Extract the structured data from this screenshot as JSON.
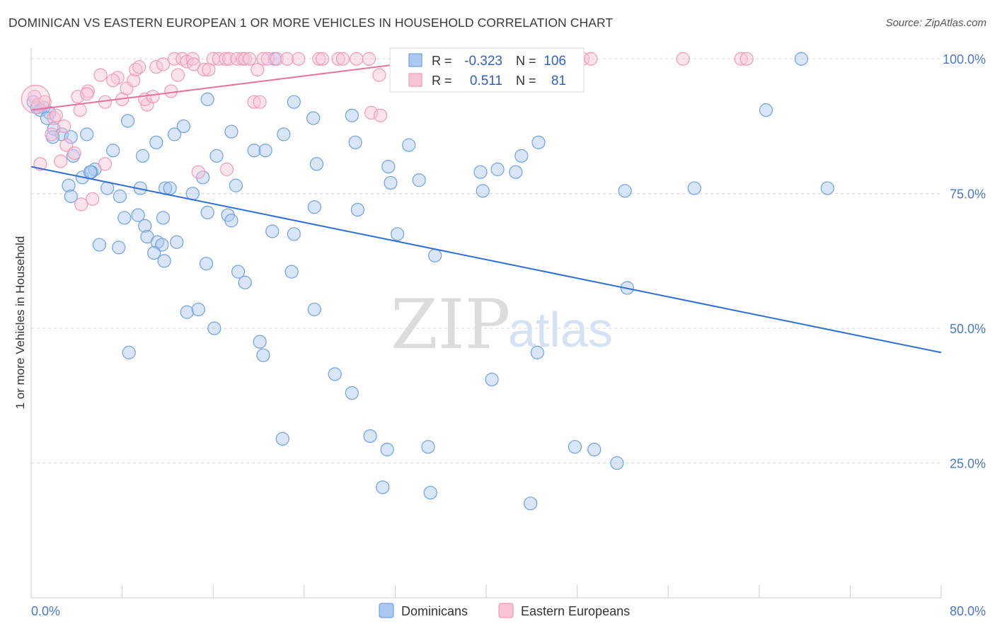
{
  "title": "DOMINICAN VS EASTERN EUROPEAN 1 OR MORE VEHICLES IN HOUSEHOLD CORRELATION CHART",
  "source": "Source: ZipAtlas.com",
  "watermark": {
    "zip": "ZIP",
    "atlas": "atlas"
  },
  "colors": {
    "blue": "#6fa0e0",
    "blue_fill": "#aac8f0",
    "blue_line": "#2e6fd0",
    "pink": "#f09ab8",
    "pink_fill": "#f8c4d6",
    "pink_line": "#e8709a",
    "grid": "#d8d8d8",
    "tick_text": "#4a78c8"
  },
  "stats": {
    "rows": [
      {
        "r_label": "R =",
        "r_value": "-0.323",
        "n_label": "N =",
        "n_value": "106"
      },
      {
        "r_label": "R =",
        "r_value": "0.511",
        "n_label": "N =",
        "n_value": "81"
      }
    ]
  },
  "legend": {
    "items": [
      "Dominicans",
      "Eastern Europeans"
    ]
  },
  "chart_data": {
    "type": "scatter",
    "title": "DOMINICAN VS EASTERN EUROPEAN 1 OR MORE VEHICLES IN HOUSEHOLD CORRELATION CHART",
    "xlabel": "",
    "ylabel": "1 or more Vehicles in Household",
    "xlim": [
      0,
      80
    ],
    "ylim": [
      0,
      102
    ],
    "x_tick_labels": [
      "0.0%",
      "80.0%"
    ],
    "y_ticks": [
      25,
      50,
      75,
      100
    ],
    "y_tick_labels": [
      "25.0%",
      "50.0%",
      "75.0%",
      "100.0%"
    ],
    "grid": true,
    "legend_position": "bottom",
    "series": [
      {
        "name": "Dominicans",
        "r": -0.323,
        "n": 106,
        "trend": {
          "x": [
            0,
            80
          ],
          "y": [
            80.0,
            45.5
          ]
        },
        "points": [
          [
            0.2,
            92
          ],
          [
            0.5,
            91
          ],
          [
            1.1,
            91
          ],
          [
            0.8,
            90.5
          ],
          [
            1.6,
            90
          ],
          [
            1.4,
            89
          ],
          [
            2.0,
            87
          ],
          [
            2.7,
            86
          ],
          [
            4.9,
            86
          ],
          [
            1.9,
            85.5
          ],
          [
            3.5,
            85.5
          ],
          [
            3.7,
            82
          ],
          [
            3.3,
            76.5
          ],
          [
            4.5,
            78
          ],
          [
            5.6,
            79.5
          ],
          [
            5.3,
            79
          ],
          [
            7.2,
            83
          ],
          [
            8.5,
            88.5
          ],
          [
            9.8,
            82
          ],
          [
            11.0,
            84.5
          ],
          [
            12.6,
            86
          ],
          [
            13.4,
            87.5
          ],
          [
            15.5,
            92.5
          ],
          [
            16.3,
            82
          ],
          [
            18.0,
            76.5
          ],
          [
            17.6,
            86.5
          ],
          [
            19.6,
            83
          ],
          [
            20.6,
            83
          ],
          [
            22.2,
            86
          ],
          [
            24.8,
            89
          ],
          [
            25.1,
            80.5
          ],
          [
            28.2,
            89.5
          ],
          [
            28.5,
            84.5
          ],
          [
            31.4,
            80
          ],
          [
            31.6,
            77
          ],
          [
            33.2,
            84
          ],
          [
            34.1,
            77.5
          ],
          [
            39.5,
            79
          ],
          [
            41.0,
            79.5
          ],
          [
            39.7,
            75.5
          ],
          [
            42.6,
            79
          ],
          [
            43.1,
            82
          ],
          [
            44.6,
            84.5
          ],
          [
            52.2,
            75.5
          ],
          [
            58.3,
            76
          ],
          [
            64.6,
            90.5
          ],
          [
            70.0,
            76
          ],
          [
            3.5,
            74.5
          ],
          [
            6.7,
            76
          ],
          [
            7.8,
            74.5
          ],
          [
            9.6,
            76
          ],
          [
            11.8,
            76
          ],
          [
            12.2,
            76
          ],
          [
            14.2,
            75
          ],
          [
            15.1,
            78
          ],
          [
            9.4,
            71
          ],
          [
            11.6,
            70.5
          ],
          [
            10.0,
            69
          ],
          [
            8.2,
            70.5
          ],
          [
            12.8,
            66
          ],
          [
            10.2,
            67
          ],
          [
            11.1,
            66
          ],
          [
            11.5,
            65.5
          ],
          [
            10.8,
            64
          ],
          [
            6.0,
            65.5
          ],
          [
            7.7,
            65
          ],
          [
            15.5,
            71.5
          ],
          [
            17.3,
            71
          ],
          [
            17.6,
            70
          ],
          [
            21.2,
            68
          ],
          [
            23.1,
            67.5
          ],
          [
            24.9,
            72.5
          ],
          [
            28.7,
            72
          ],
          [
            32.2,
            67.5
          ],
          [
            35.5,
            63.5
          ],
          [
            15.4,
            62
          ],
          [
            18.2,
            60.5
          ],
          [
            18.8,
            58.5
          ],
          [
            22.9,
            60.5
          ],
          [
            11.7,
            62.5
          ],
          [
            13.7,
            53
          ],
          [
            14.7,
            53.5
          ],
          [
            16.1,
            50
          ],
          [
            20.1,
            47.5
          ],
          [
            20.4,
            45
          ],
          [
            24.9,
            53.5
          ],
          [
            52.4,
            57.5
          ],
          [
            8.6,
            45.5
          ],
          [
            44.5,
            45.5
          ],
          [
            26.7,
            41.5
          ],
          [
            28.2,
            38
          ],
          [
            40.5,
            40.5
          ],
          [
            22.1,
            29.5
          ],
          [
            29.8,
            30
          ],
          [
            31.3,
            27.5
          ],
          [
            34.9,
            28
          ],
          [
            47.8,
            28
          ],
          [
            49.5,
            27.5
          ],
          [
            51.5,
            25
          ],
          [
            30.9,
            20.5
          ],
          [
            35.1,
            19.5
          ],
          [
            43.9,
            17.5
          ],
          [
            23.1,
            92
          ],
          [
            21.4,
            100
          ],
          [
            32.4,
            100
          ],
          [
            67.7,
            100
          ],
          [
            5.2,
            79
          ]
        ]
      },
      {
        "name": "Eastern Europeans",
        "r": 0.511,
        "n": 81,
        "trend": {
          "x": [
            0,
            36.0
          ],
          "y": [
            90.5,
            100.0
          ]
        },
        "points": [
          [
            0.3,
            93
          ],
          [
            0.6,
            91.5
          ],
          [
            1.2,
            92
          ],
          [
            2.0,
            89
          ],
          [
            2.9,
            87.5
          ],
          [
            1.8,
            86
          ],
          [
            3.1,
            84
          ],
          [
            3.8,
            82.5
          ],
          [
            2.6,
            81
          ],
          [
            0.8,
            80.5
          ],
          [
            4.3,
            90.5
          ],
          [
            4.1,
            93
          ],
          [
            5.0,
            94
          ],
          [
            4.9,
            93.5
          ],
          [
            6.1,
            97
          ],
          [
            6.5,
            92
          ],
          [
            7.6,
            96.5
          ],
          [
            7.2,
            96
          ],
          [
            8.4,
            94.5
          ],
          [
            8.0,
            92.5
          ],
          [
            9.0,
            96
          ],
          [
            9.2,
            98
          ],
          [
            9.5,
            98.5
          ],
          [
            10.2,
            91.5
          ],
          [
            10.0,
            92.5
          ],
          [
            10.7,
            93
          ],
          [
            11.0,
            98.5
          ],
          [
            11.6,
            99
          ],
          [
            12.3,
            94
          ],
          [
            12.6,
            100
          ],
          [
            12.9,
            97
          ],
          [
            13.3,
            100
          ],
          [
            13.7,
            99.5
          ],
          [
            14.2,
            100
          ],
          [
            14.3,
            99
          ],
          [
            15.2,
            98
          ],
          [
            15.6,
            98
          ],
          [
            16.0,
            100
          ],
          [
            16.5,
            100
          ],
          [
            17.1,
            100
          ],
          [
            17.4,
            100
          ],
          [
            18.1,
            100
          ],
          [
            18.6,
            100
          ],
          [
            18.8,
            100
          ],
          [
            19.2,
            100
          ],
          [
            19.9,
            98
          ],
          [
            20.4,
            100
          ],
          [
            20.8,
            100
          ],
          [
            21.6,
            100
          ],
          [
            22.5,
            100
          ],
          [
            23.5,
            100
          ],
          [
            25.3,
            100
          ],
          [
            25.6,
            100
          ],
          [
            27.0,
            100
          ],
          [
            27.4,
            100
          ],
          [
            28.6,
            100
          ],
          [
            29.7,
            100
          ],
          [
            30.6,
            97
          ],
          [
            29.9,
            90
          ],
          [
            30.7,
            89.5
          ],
          [
            33.8,
            100
          ],
          [
            34.2,
            100
          ],
          [
            34.9,
            100
          ],
          [
            36.3,
            100
          ],
          [
            37.8,
            100
          ],
          [
            41.7,
            100
          ],
          [
            45.7,
            100
          ],
          [
            47.8,
            100
          ],
          [
            48.5,
            100
          ],
          [
            49.2,
            100
          ],
          [
            57.3,
            100
          ],
          [
            62.4,
            100
          ],
          [
            62.9,
            100
          ],
          [
            6.5,
            80.5
          ],
          [
            4.4,
            73
          ],
          [
            5.4,
            74
          ],
          [
            14.7,
            79
          ],
          [
            17.2,
            79.5
          ],
          [
            19.6,
            92
          ],
          [
            20.1,
            92
          ],
          [
            2.2,
            89.5
          ]
        ]
      }
    ]
  }
}
